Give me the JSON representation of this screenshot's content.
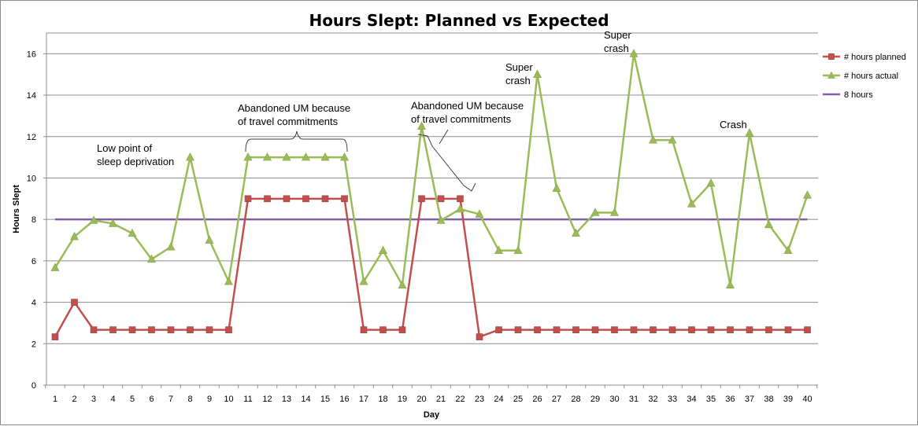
{
  "chart_data": {
    "type": "line",
    "title": "Hours Slept: Planned vs Expected",
    "xlabel": "Day",
    "ylabel": "Hours Slept",
    "ylim": [
      0,
      17
    ],
    "yticks": [
      0,
      2,
      4,
      6,
      8,
      10,
      12,
      14,
      16
    ],
    "grid": true,
    "legend_position": "right",
    "x": [
      1,
      2,
      3,
      4,
      5,
      6,
      7,
      8,
      9,
      10,
      11,
      12,
      13,
      14,
      15,
      16,
      17,
      18,
      19,
      20,
      21,
      22,
      23,
      24,
      25,
      26,
      27,
      28,
      29,
      30,
      31,
      32,
      33,
      34,
      35,
      36,
      37,
      38,
      39,
      40
    ],
    "series": [
      {
        "name": "# hours planned",
        "color": "#c0504d",
        "marker": "square",
        "values": [
          2.33,
          4,
          2.67,
          2.67,
          2.67,
          2.67,
          2.67,
          2.67,
          2.67,
          2.67,
          9,
          9,
          9,
          9,
          9,
          9,
          2.67,
          2.67,
          2.67,
          9,
          9,
          9,
          2.33,
          2.67,
          2.67,
          2.67,
          2.67,
          2.67,
          2.67,
          2.67,
          2.67,
          2.67,
          2.67,
          2.67,
          2.67,
          2.67,
          2.67,
          2.67,
          2.67,
          2.67
        ]
      },
      {
        "name": "# hours actual",
        "color": "#9bbb59",
        "marker": "triangle",
        "values": [
          5.67,
          7.17,
          7.95,
          7.8,
          7.33,
          6.08,
          6.67,
          11,
          7,
          5,
          11,
          11,
          11,
          11,
          11,
          11,
          5,
          6.5,
          4.83,
          12.5,
          7.95,
          8.5,
          8.25,
          6.5,
          6.5,
          15,
          9.5,
          7.33,
          8.33,
          8.33,
          16,
          11.83,
          11.83,
          8.75,
          9.75,
          4.83,
          12.17,
          7.75,
          6.5,
          9.17
        ]
      },
      {
        "name": "8 hours",
        "color": "#7f5fa8",
        "marker": "none",
        "values": [
          8,
          8,
          8,
          8,
          8,
          8,
          8,
          8,
          8,
          8,
          8,
          8,
          8,
          8,
          8,
          8,
          8,
          8,
          8,
          8,
          8,
          8,
          8,
          8,
          8,
          8,
          8,
          8,
          8,
          8,
          8,
          8,
          8,
          8,
          8,
          8,
          8,
          8,
          8,
          8
        ]
      }
    ],
    "annotations": [
      {
        "lines": [
          "Low point of",
          "sleep deprivation"
        ]
      },
      {
        "lines": [
          "Abandoned UM because",
          "of travel commitments"
        ]
      },
      {
        "lines": [
          "Abandoned UM because",
          "of travel commitments"
        ]
      },
      {
        "lines": [
          "Super",
          "crash"
        ]
      },
      {
        "lines": [
          "Super",
          "crash"
        ]
      },
      {
        "lines": [
          "Crash"
        ]
      }
    ]
  }
}
